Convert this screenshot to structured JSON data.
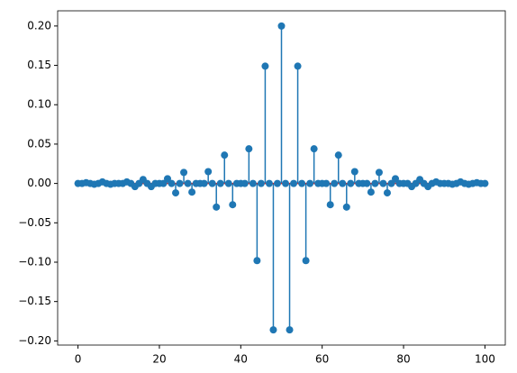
{
  "chart_data": {
    "type": "stem",
    "x": [
      0,
      1,
      2,
      3,
      4,
      5,
      6,
      7,
      8,
      9,
      10,
      11,
      12,
      13,
      14,
      15,
      16,
      17,
      18,
      19,
      20,
      21,
      22,
      23,
      24,
      25,
      26,
      27,
      28,
      29,
      30,
      31,
      32,
      33,
      34,
      35,
      36,
      37,
      38,
      39,
      40,
      41,
      42,
      43,
      44,
      45,
      46,
      47,
      48,
      49,
      50,
      51,
      52,
      53,
      54,
      55,
      56,
      57,
      58,
      59,
      60,
      61,
      62,
      63,
      64,
      65,
      66,
      67,
      68,
      69,
      70,
      71,
      72,
      73,
      74,
      75,
      76,
      77,
      78,
      79,
      80,
      81,
      82,
      83,
      84,
      85,
      86,
      87,
      88,
      89,
      90,
      91,
      92,
      93,
      94,
      95,
      96,
      97,
      98,
      99,
      100
    ],
    "values": [
      0,
      0,
      0.001,
      0,
      -0.001,
      0,
      0.002,
      0,
      -0.001,
      0,
      0,
      0,
      0.002,
      0,
      -0.004,
      0,
      0.005,
      0,
      -0.004,
      0,
      0,
      0,
      0.006,
      0,
      -0.012,
      0,
      0.014,
      0,
      -0.011,
      0,
      0,
      0,
      0.015,
      0,
      -0.03,
      0,
      0.036,
      0,
      -0.027,
      0,
      0,
      0,
      0.044,
      0,
      -0.098,
      0,
      0.149,
      0,
      -0.186,
      0,
      0.2,
      0,
      -0.186,
      0,
      0.149,
      0,
      -0.098,
      0,
      0.044,
      0,
      0,
      0,
      -0.027,
      0,
      0.036,
      0,
      -0.03,
      0,
      0.015,
      0,
      0,
      0,
      -0.011,
      0,
      0.014,
      0,
      -0.012,
      0,
      0.006,
      0,
      0,
      0,
      -0.004,
      0,
      0.005,
      0,
      -0.004,
      0,
      0.002,
      0,
      0,
      0,
      -0.001,
      0,
      0.002,
      0,
      -0.001,
      0,
      0.001,
      0,
      0
    ],
    "color": "#1f77b4",
    "baseline_color": "#d62728",
    "xlim": [
      -5,
      105
    ],
    "xticks": [
      0,
      20,
      40,
      60,
      80,
      100
    ],
    "ylim": [
      -0.2053,
      0.2193
    ],
    "yticks": [
      {
        "value": -0.2,
        "label": "−0.20"
      },
      {
        "value": -0.15,
        "label": "−0.15"
      },
      {
        "value": -0.1,
        "label": "−0.10"
      },
      {
        "value": -0.05,
        "label": "−0.05"
      },
      {
        "value": 0,
        "label": "0.00"
      },
      {
        "value": 0.05,
        "label": "0.05"
      },
      {
        "value": 0.1,
        "label": "0.10"
      },
      {
        "value": 0.15,
        "label": "0.15"
      },
      {
        "value": 0.2,
        "label": "0.20"
      }
    ]
  }
}
